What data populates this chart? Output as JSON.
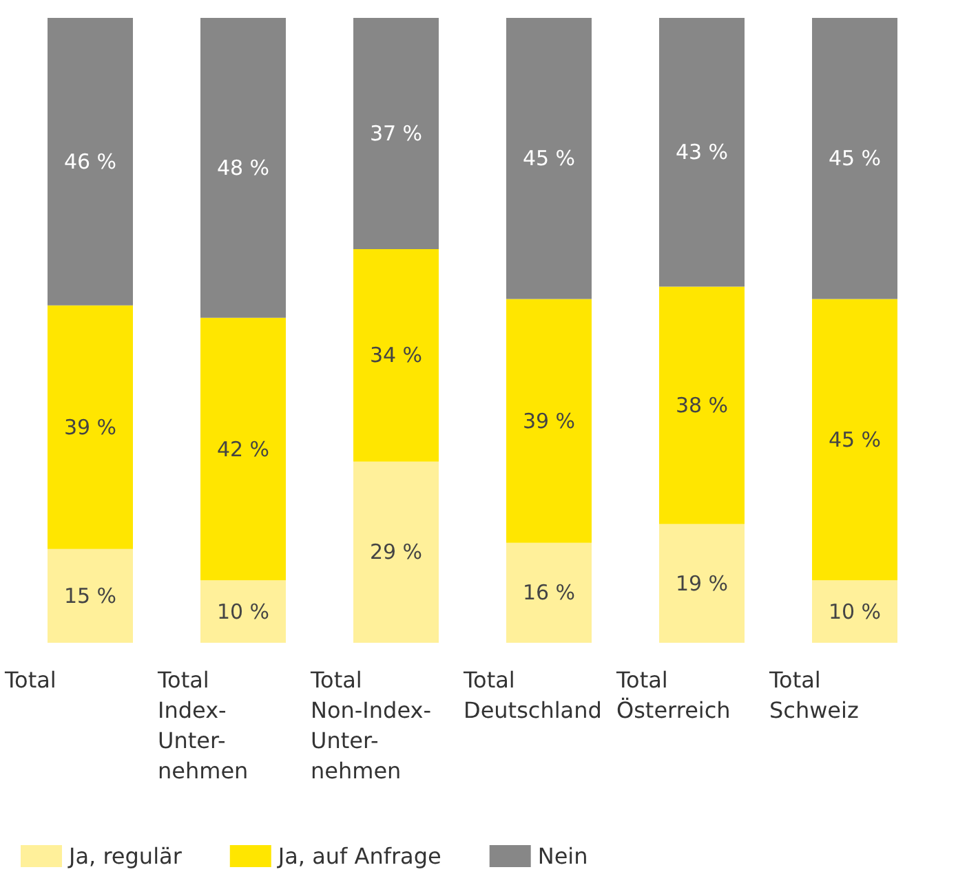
{
  "chart_data": {
    "type": "bar",
    "stacked": true,
    "categories": [
      "Total",
      "Total\nIndex-\nUnter-\nnehmen",
      "Total\nNon-Index-\nUnter-\nnehmen",
      "Total\nDeutschland",
      "Total\nÖsterreich",
      "Total\nSchweiz"
    ],
    "series": [
      {
        "name": "Ja, regulär",
        "color": "#fff09a",
        "values": [
          15,
          10,
          29,
          16,
          19,
          10
        ],
        "value_labels": [
          "15 %",
          "10 %",
          "29 %",
          "16 %",
          "19 %",
          "10 %"
        ]
      },
      {
        "name": "Ja, auf Anfrage",
        "color": "#ffe600",
        "values": [
          39,
          42,
          34,
          39,
          38,
          45
        ],
        "value_labels": [
          "39 %",
          "42 %",
          "34 %",
          "39 %",
          "38 %",
          "45 %"
        ]
      },
      {
        "name": "Nein",
        "color": "#878787",
        "values": [
          46,
          48,
          37,
          45,
          43,
          45
        ],
        "value_labels": [
          "46 %",
          "48 %",
          "37 %",
          "45 %",
          "43 %",
          "45 %"
        ]
      }
    ],
    "legend": "bottom left"
  }
}
